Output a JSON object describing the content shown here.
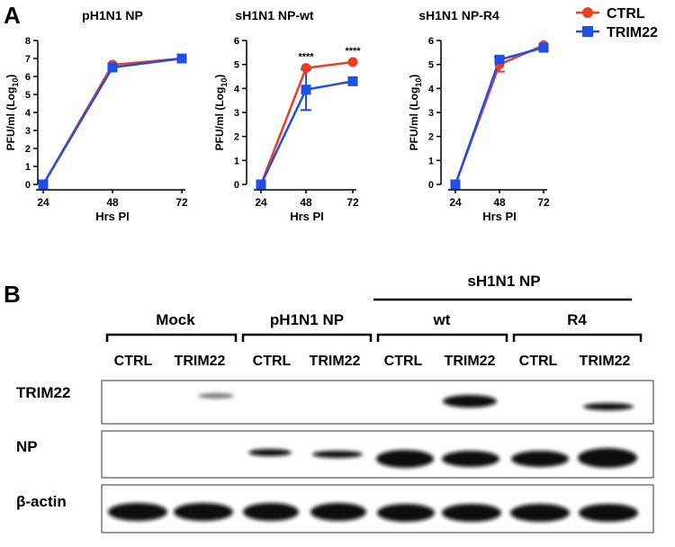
{
  "panel_labels": [
    "A",
    "B"
  ],
  "chart_data": [
    {
      "type": "line",
      "title": "pH1N1 NP",
      "x_label": "Hrs PI",
      "y_label": [
        "PFU/ml (Log",
        "10",
        ")"
      ],
      "categories": [
        "24",
        "48",
        "72"
      ],
      "ylim": [
        0,
        8
      ],
      "yticks": [
        0,
        1,
        2,
        3,
        4,
        5,
        6,
        7,
        8
      ],
      "series": [
        {
          "name": "CTRL",
          "color": "#f03c22",
          "marker": "circle",
          "values": [
            0,
            6.65,
            7.0
          ],
          "errors": [
            null,
            null,
            null
          ]
        },
        {
          "name": "TRIM22",
          "color": "#1f4fe6",
          "marker": "square",
          "values": [
            0,
            6.5,
            7.0
          ],
          "errors": [
            null,
            null,
            null
          ]
        }
      ]
    },
    {
      "type": "line",
      "title": "sH1N1 NP-wt",
      "x_label": "Hrs PI",
      "y_label": [
        "PFU/ml (Log",
        "10",
        ")"
      ],
      "categories": [
        "24",
        "48",
        "72"
      ],
      "ylim": [
        0,
        6
      ],
      "yticks": [
        0,
        1,
        2,
        3,
        4,
        5,
        6
      ],
      "annotations": [
        null,
        "****",
        "****"
      ],
      "series": [
        {
          "name": "CTRL",
          "color": "#f03c22",
          "marker": "circle",
          "values": [
            0,
            4.85,
            5.1
          ],
          "errors": [
            null,
            null,
            null
          ]
        },
        {
          "name": "TRIM22",
          "color": "#1f4fe6",
          "marker": "square",
          "values": [
            0,
            3.95,
            4.3
          ],
          "errors": [
            null,
            0.85,
            null
          ]
        }
      ]
    },
    {
      "type": "line",
      "title": "sH1N1 NP-R4",
      "x_label": "Hrs PI",
      "y_label": [
        "PFU/ml (Log",
        "10",
        ")"
      ],
      "categories": [
        "24",
        "48",
        "72"
      ],
      "ylim": [
        0,
        6
      ],
      "yticks": [
        0,
        1,
        2,
        3,
        4,
        5,
        6
      ],
      "legend": "top right",
      "series": [
        {
          "name": "CTRL",
          "color": "#f03c22",
          "marker": "circle",
          "values": [
            0,
            5.0,
            5.8
          ],
          "errors": [
            null,
            0.3,
            null
          ]
        },
        {
          "name": "TRIM22",
          "color": "#1f4fe6",
          "marker": "square",
          "values": [
            0,
            5.2,
            5.7
          ],
          "errors": [
            null,
            null,
            null
          ]
        }
      ]
    }
  ],
  "blot": {
    "super_header": "sH1N1 NP",
    "groups": [
      "Mock",
      "pH1N1 NP",
      "wt",
      "R4"
    ],
    "lanes": [
      "CTRL",
      "TRIM22",
      "CTRL",
      "TRIM22",
      "CTRL",
      "TRIM22",
      "CTRL",
      "TRIM22"
    ],
    "rows": [
      "TRIM22",
      "NP",
      "β-actin"
    ]
  }
}
